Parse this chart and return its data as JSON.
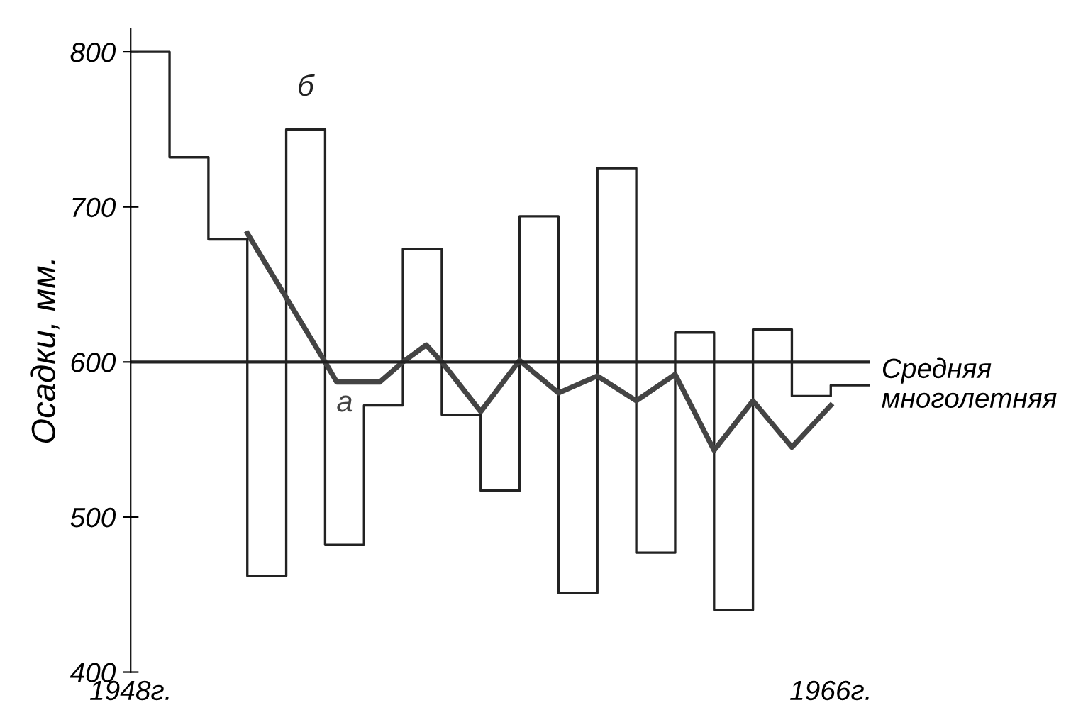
{
  "chart_data": {
    "type": "step",
    "ylabel": "Осадки, мм.",
    "series": [
      {
        "name": "б",
        "color": "#222222",
        "x": [
          1948,
          1949,
          1950,
          1951,
          1952,
          1953,
          1954,
          1955,
          1956,
          1957,
          1958,
          1959,
          1960,
          1961,
          1962,
          1963,
          1964,
          1965,
          1966,
          1967
        ],
        "values": [
          800,
          732,
          679,
          462,
          750,
          482,
          572,
          673,
          566,
          517,
          694,
          451,
          725,
          477,
          619,
          440,
          621,
          578,
          585,
          585
        ]
      },
      {
        "name": "а",
        "type": "line",
        "color": "#444444",
        "x": [
          1951,
          1953,
          1953.3,
          1954.4,
          1955,
          1955.6,
          1956,
          1957,
          1958,
          1959,
          1960,
          1961,
          1962,
          1963,
          1964,
          1965,
          1966
        ],
        "values": [
          683,
          600,
          587,
          587,
          600,
          611,
          600,
          568,
          601,
          580,
          591,
          575,
          592,
          543,
          575,
          545,
          572
        ]
      }
    ],
    "ref_lines": [
      {
        "axis": "y",
        "value": 600,
        "label": "Средняя многолетняя",
        "color": "#222222"
      }
    ],
    "xlim": [
      1948,
      1967
    ],
    "xticks": [
      {
        "value": 1948,
        "label": "1948г."
      },
      {
        "value": 1966,
        "label": "1966г."
      }
    ],
    "ylim": [
      400,
      815
    ],
    "yticks": [
      400,
      500,
      600,
      700,
      800
    ],
    "grid": false,
    "legend": false
  }
}
